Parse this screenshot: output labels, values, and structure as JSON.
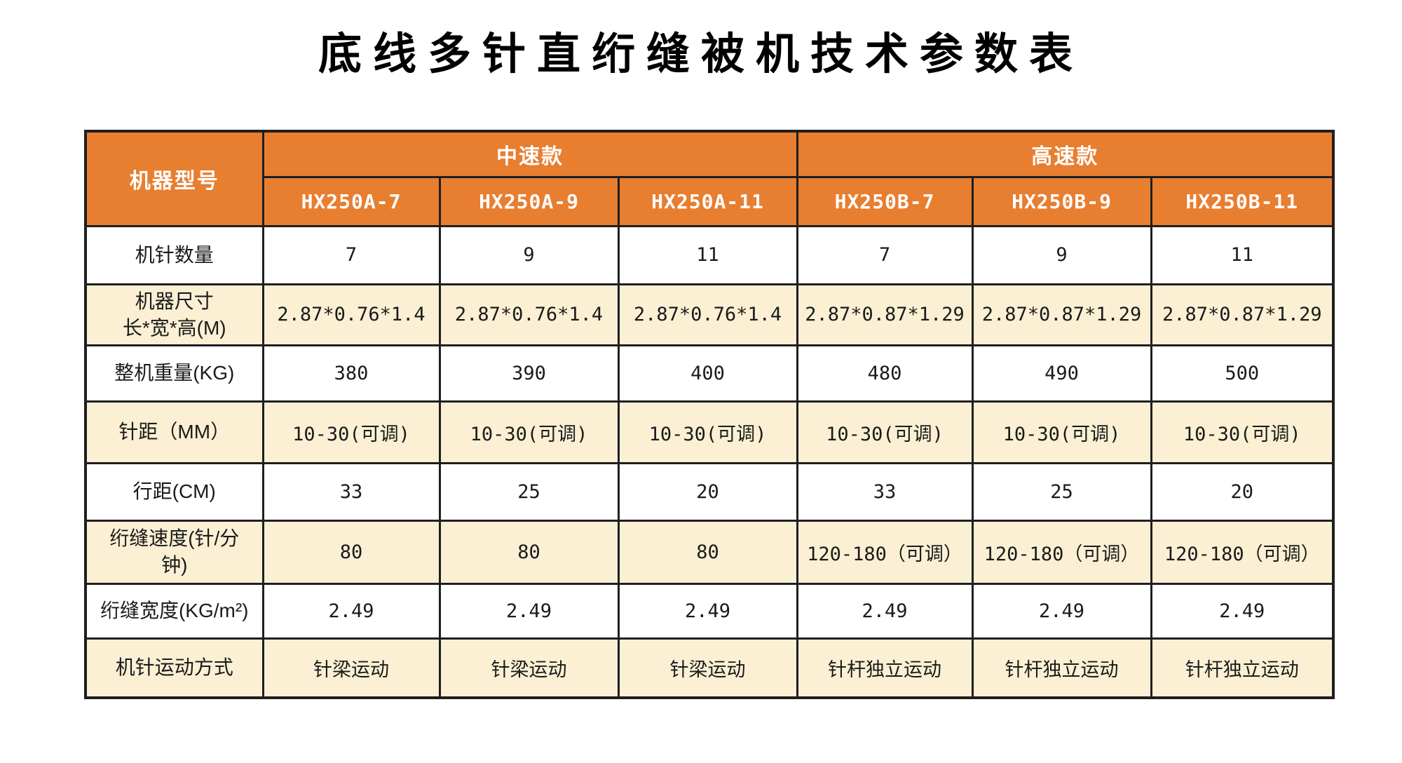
{
  "title": "底线多针直绗缝被机技术参数表",
  "colors": {
    "header_bg": "#E87E30",
    "header_text": "#FFFFFF",
    "row_alt_bg": "#FBF0D4",
    "row_bg": "#FFFFFF",
    "border": "#1F1F1F",
    "text": "#1A1A1A"
  },
  "table": {
    "corner_label": "机器型号",
    "groups": [
      {
        "label": "中速款",
        "models": [
          "HX250A-7",
          "HX250A-9",
          "HX250A-11"
        ]
      },
      {
        "label": "高速款",
        "models": [
          "HX250B-7",
          "HX250B-9",
          "HX250B-11"
        ]
      }
    ],
    "rows": [
      {
        "label": "机针数量",
        "values": [
          "7",
          "9",
          "11",
          "7",
          "9",
          "11"
        ]
      },
      {
        "label": "机器尺寸\n长*宽*高(M)",
        "values": [
          "2.87*0.76*1.4",
          "2.87*0.76*1.4",
          "2.87*0.76*1.4",
          "2.87*0.87*1.29",
          "2.87*0.87*1.29",
          "2.87*0.87*1.29"
        ]
      },
      {
        "label": "整机重量(KG)",
        "values": [
          "380",
          "390",
          "400",
          "480",
          "490",
          "500"
        ]
      },
      {
        "label": "针距（MM）",
        "values": [
          "10-30(可调)",
          "10-30(可调)",
          "10-30(可调)",
          "10-30(可调)",
          "10-30(可调)",
          "10-30(可调)"
        ]
      },
      {
        "label": "行距(CM)",
        "values": [
          "33",
          "25",
          "20",
          "33",
          "25",
          "20"
        ]
      },
      {
        "label": "绗缝速度(针/分\n钟)",
        "values": [
          "80",
          "80",
          "80",
          "120-180（可调）",
          "120-180（可调）",
          "120-180（可调）"
        ]
      },
      {
        "label": "绗缝宽度(KG/m²)",
        "values": [
          "2.49",
          "2.49",
          "2.49",
          "2.49",
          "2.49",
          "2.49"
        ]
      },
      {
        "label": "机针运动方式",
        "values": [
          "针梁运动",
          "针梁运动",
          "针梁运动",
          "针杆独立运动",
          "针杆独立运动",
          "针杆独立运动"
        ]
      }
    ]
  }
}
